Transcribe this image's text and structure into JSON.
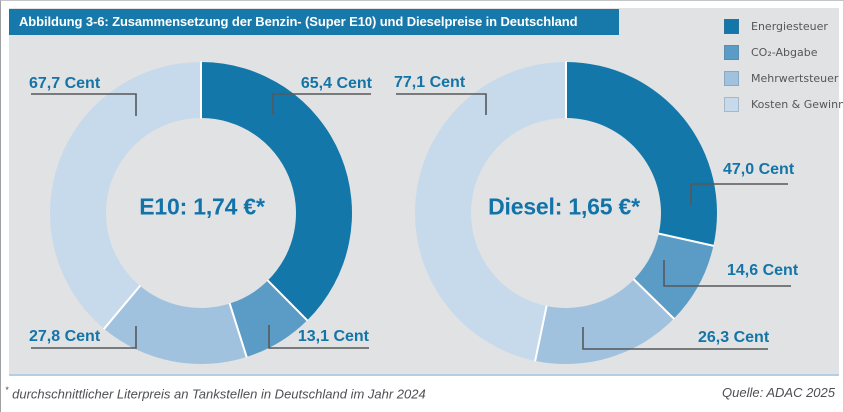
{
  "header": {
    "title": "Abbildung 3-6: Zusammensetzung der Benzin- (Super E10) und Dieselpreise in Deutschland"
  },
  "legend": {
    "position": "top-right",
    "items": [
      {
        "label": "Energiesteuer",
        "color": "#1377a9"
      },
      {
        "label": "CO₂-Abgabe",
        "color": "#5b9cc6"
      },
      {
        "label": "Mehrwertsteuer",
        "color": "#a0c2de"
      },
      {
        "label": "Kosten & Gewinn",
        "color": "#c7daec"
      }
    ]
  },
  "colors": {
    "header_bar": "#1779a9",
    "panel_background": "#e0e2e3",
    "label_text": "#1374a8",
    "leader_line": "#57585a",
    "panel_bottom_rule": "#b2cfe5"
  },
  "chart_data": [
    {
      "type": "pie",
      "subtype": "donut",
      "name": "E10",
      "center_label": "E10: 1,74 €*",
      "total_price_eur": "1,74",
      "unit": "Cent",
      "segments": [
        {
          "name": "Energiesteuer",
          "value": 65.4,
          "label": "65,4 Cent"
        },
        {
          "name": "CO₂-Abgabe",
          "value": 13.1,
          "label": "13,1 Cent"
        },
        {
          "name": "Mehrwertsteuer",
          "value": 27.8,
          "label": "27,8 Cent"
        },
        {
          "name": "Kosten & Gewinn",
          "value": 67.7,
          "label": "67,7 Cent"
        }
      ]
    },
    {
      "type": "pie",
      "subtype": "donut",
      "name": "Diesel",
      "center_label": "Diesel: 1,65 €*",
      "total_price_eur": "1,65",
      "unit": "Cent",
      "segments": [
        {
          "name": "Energiesteuer",
          "value": 47.0,
          "label": "47,0 Cent"
        },
        {
          "name": "CO₂-Abgabe",
          "value": 14.6,
          "label": "14,6 Cent"
        },
        {
          "name": "Mehrwertsteuer",
          "value": 26.3,
          "label": "26,3 Cent"
        },
        {
          "name": "Kosten & Gewinn",
          "value": 77.1,
          "label": "77,1 Cent"
        }
      ]
    }
  ],
  "footer": {
    "note_marker": "*",
    "note": "durchschnittlicher Literpreis an Tankstellen in Deutschland im Jahr 2024",
    "source": "Quelle: ADAC 2025"
  }
}
